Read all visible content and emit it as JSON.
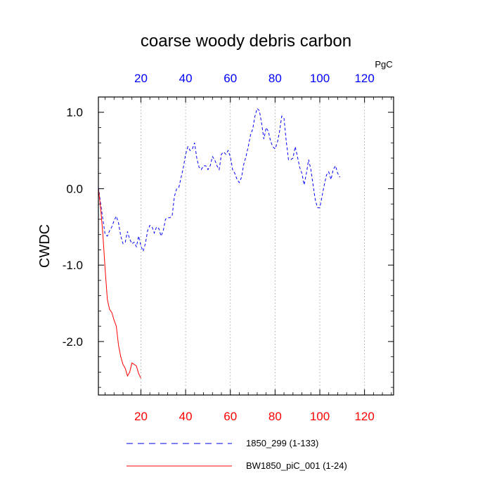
{
  "chart_data": {
    "type": "line",
    "title": "coarse woody debris carbon",
    "ylabel": "CWDC",
    "units": "PgC",
    "xlim": [
      1,
      133
    ],
    "ylim": [
      -2.7,
      1.2
    ],
    "x_ticks": [
      20,
      40,
      60,
      80,
      100,
      120
    ],
    "x_tick_labels": [
      "20",
      "40",
      "60",
      "80",
      "100",
      "120"
    ],
    "y_ticks": [
      1.0,
      0.0,
      -1.0,
      -2.0
    ],
    "y_tick_labels": [
      "1.0",
      "0.0",
      "-1.0",
      "-2.0"
    ],
    "grid": "vertical-dotted",
    "legend_position": "bottom",
    "colors": {
      "top_axis": "#0000ff",
      "bottom_axis": "#ff0000"
    },
    "series": [
      {
        "name": "1850_299 (1-133)",
        "color": "#0000ff",
        "dash": "dashed",
        "points": [
          [
            1,
            0.02
          ],
          [
            2,
            -0.2
          ],
          [
            3,
            -0.4
          ],
          [
            4,
            -0.6
          ],
          [
            5,
            -0.62
          ],
          [
            6,
            -0.55
          ],
          [
            7,
            -0.5
          ],
          [
            8,
            -0.42
          ],
          [
            9,
            -0.36
          ],
          [
            10,
            -0.45
          ],
          [
            11,
            -0.62
          ],
          [
            12,
            -0.72
          ],
          [
            13,
            -0.7
          ],
          [
            14,
            -0.56
          ],
          [
            15,
            -0.66
          ],
          [
            16,
            -0.72
          ],
          [
            17,
            -0.7
          ],
          [
            18,
            -0.76
          ],
          [
            19,
            -0.62
          ],
          [
            20,
            -0.75
          ],
          [
            21,
            -0.82
          ],
          [
            22,
            -0.72
          ],
          [
            23,
            -0.55
          ],
          [
            24,
            -0.48
          ],
          [
            25,
            -0.5
          ],
          [
            26,
            -0.58
          ],
          [
            27,
            -0.5
          ],
          [
            28,
            -0.52
          ],
          [
            29,
            -0.62
          ],
          [
            30,
            -0.55
          ],
          [
            31,
            -0.4
          ],
          [
            32,
            -0.38
          ],
          [
            33,
            -0.38
          ],
          [
            34,
            -0.35
          ],
          [
            35,
            -0.1
          ],
          [
            36,
            0.0
          ],
          [
            37,
            0.02
          ],
          [
            38,
            0.15
          ],
          [
            39,
            0.28
          ],
          [
            40,
            0.45
          ],
          [
            41,
            0.55
          ],
          [
            42,
            0.5
          ],
          [
            43,
            0.52
          ],
          [
            44,
            0.6
          ],
          [
            45,
            0.4
          ],
          [
            46,
            0.28
          ],
          [
            47,
            0.25
          ],
          [
            48,
            0.3
          ],
          [
            49,
            0.3
          ],
          [
            50,
            0.25
          ],
          [
            51,
            0.3
          ],
          [
            52,
            0.42
          ],
          [
            53,
            0.38
          ],
          [
            54,
            0.3
          ],
          [
            55,
            0.25
          ],
          [
            56,
            0.45
          ],
          [
            57,
            0.48
          ],
          [
            58,
            0.45
          ],
          [
            59,
            0.5
          ],
          [
            60,
            0.42
          ],
          [
            61,
            0.25
          ],
          [
            62,
            0.2
          ],
          [
            63,
            0.12
          ],
          [
            64,
            0.08
          ],
          [
            65,
            0.15
          ],
          [
            66,
            0.32
          ],
          [
            67,
            0.42
          ],
          [
            68,
            0.55
          ],
          [
            69,
            0.7
          ],
          [
            70,
            0.78
          ],
          [
            71,
            0.95
          ],
          [
            72,
            1.05
          ],
          [
            73,
            1.02
          ],
          [
            74,
            0.85
          ],
          [
            75,
            0.65
          ],
          [
            76,
            0.8
          ],
          [
            77,
            0.75
          ],
          [
            78,
            0.62
          ],
          [
            79,
            0.55
          ],
          [
            80,
            0.52
          ],
          [
            81,
            0.6
          ],
          [
            82,
            0.75
          ],
          [
            83,
            0.95
          ],
          [
            84,
            0.92
          ],
          [
            85,
            0.62
          ],
          [
            86,
            0.38
          ],
          [
            87,
            0.38
          ],
          [
            88,
            0.4
          ],
          [
            89,
            0.55
          ],
          [
            90,
            0.42
          ],
          [
            91,
            0.28
          ],
          [
            92,
            0.2
          ],
          [
            93,
            0.05
          ],
          [
            94,
            0.2
          ],
          [
            95,
            0.38
          ],
          [
            96,
            0.25
          ],
          [
            97,
            0.05
          ],
          [
            98,
            -0.15
          ],
          [
            99,
            -0.25
          ],
          [
            100,
            -0.25
          ],
          [
            101,
            -0.1
          ],
          [
            102,
            0.05
          ],
          [
            103,
            0.18
          ],
          [
            104,
            0.22
          ],
          [
            105,
            0.12
          ],
          [
            106,
            0.25
          ],
          [
            107,
            0.3
          ],
          [
            108,
            0.2
          ],
          [
            109,
            0.15
          ]
        ]
      },
      {
        "name": "BW1850_piC_001 (1-24)",
        "color": "#ff0000",
        "dash": "solid",
        "points": [
          [
            1,
            0.0
          ],
          [
            2,
            -0.25
          ],
          [
            3,
            -0.6
          ],
          [
            4,
            -1.05
          ],
          [
            5,
            -1.45
          ],
          [
            6,
            -1.58
          ],
          [
            7,
            -1.62
          ],
          [
            8,
            -1.72
          ],
          [
            9,
            -1.8
          ],
          [
            10,
            -2.05
          ],
          [
            11,
            -2.2
          ],
          [
            12,
            -2.3
          ],
          [
            13,
            -2.35
          ],
          [
            14,
            -2.45
          ],
          [
            15,
            -2.4
          ],
          [
            16,
            -2.28
          ],
          [
            17,
            -2.3
          ],
          [
            18,
            -2.32
          ],
          [
            19,
            -2.42
          ],
          [
            20,
            -2.48
          ]
        ]
      }
    ]
  }
}
